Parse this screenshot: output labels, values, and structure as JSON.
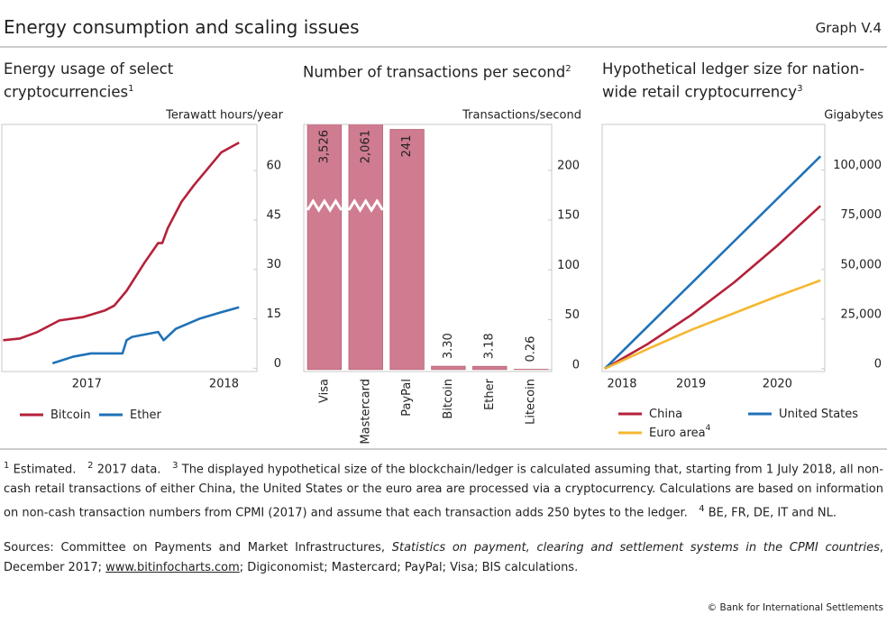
{
  "header": {
    "title": "Energy consumption and scaling issues",
    "graph_id": "Graph V.4"
  },
  "chart_data": [
    {
      "type": "line",
      "title": "Energy usage of select cryptocurrencies",
      "title_note": "1",
      "y_label": "Terawatt hours/year",
      "xlim": [
        2016.38,
        2018.24
      ],
      "xticks": [
        2017,
        2018
      ],
      "ylim": [
        -1,
        74
      ],
      "yticks": [
        0,
        15,
        30,
        45,
        60
      ],
      "grid": false,
      "series": [
        {
          "name": "Bitcoin",
          "color": "#b5213a",
          "x": [
            2016.39,
            2016.51,
            2016.64,
            2016.8,
            2016.97,
            2017.13,
            2017.2,
            2017.29,
            2017.42,
            2017.52,
            2017.55,
            2017.59,
            2017.69,
            2017.78,
            2017.88,
            2017.98,
            2018.11
          ],
          "values": [
            8.5,
            9,
            11,
            14.5,
            15.5,
            17.5,
            19,
            23.5,
            32,
            38,
            38,
            42.5,
            50.5,
            55.5,
            60.5,
            65.5,
            68.5
          ]
        },
        {
          "name": "Ether",
          "color": "#1f72b8",
          "x": [
            2016.75,
            2016.9,
            2017.03,
            2017.26,
            2017.29,
            2017.33,
            2017.52,
            2017.56,
            2017.65,
            2017.82,
            2017.98,
            2018.11
          ],
          "values": [
            1.5,
            3.5,
            4.5,
            4.5,
            8.5,
            9.5,
            11,
            8.5,
            12,
            15,
            17,
            18.5
          ]
        }
      ]
    },
    {
      "type": "bar",
      "title": "Number of transactions per second",
      "title_note": "2",
      "y_label": "Transactions/second",
      "categories": [
        "Visa",
        "Mastercard",
        "PayPal",
        "Bitcoin",
        "Ether",
        "Litecoin"
      ],
      "values": [
        3526,
        2061,
        241,
        3.3,
        3.18,
        0.26
      ],
      "value_labels": [
        "3,526",
        "2,061",
        "241",
        "3.30",
        "3.18",
        "0.26"
      ],
      "color": "#cf7b90",
      "ylim": [
        -2,
        246
      ],
      "yticks": [
        0,
        50,
        100,
        150,
        200
      ],
      "grid": false
    },
    {
      "type": "line",
      "title": "Hypothetical ledger size for nation-wide retail cryptocurrency",
      "title_note": "3",
      "y_label": "Gigabytes",
      "xlim": [
        2018.47,
        2021.05
      ],
      "xticks": [
        {
          "value": 2018.7,
          "label": "2018"
        },
        {
          "value": 2019.5,
          "label": "2019"
        },
        {
          "value": 2020.5,
          "label": "2020"
        }
      ],
      "ylim": [
        -1400,
        123000
      ],
      "yticks": [
        0,
        {
          "value": 25000,
          "label": "25,000"
        },
        {
          "value": 50000,
          "label": "50,000"
        },
        {
          "value": 75000,
          "label": "75,000"
        },
        {
          "value": 100000,
          "label": "100,000"
        }
      ],
      "grid": false,
      "series": [
        {
          "name": "China",
          "color": "#b5213a",
          "x": [
            2018.5,
            2019,
            2019.5,
            2020,
            2020.5,
            2021
          ],
          "values": [
            0,
            12500,
            27000,
            43500,
            62000,
            82000
          ]
        },
        {
          "name": "United States",
          "color": "#1f72b8",
          "x": [
            2018.5,
            2019,
            2019.5,
            2020,
            2020.5,
            2021
          ],
          "values": [
            0,
            21400,
            42800,
            64200,
            85600,
            107000
          ]
        },
        {
          "name": "Euro area",
          "name_note": "4",
          "color": "#f5b731",
          "x": [
            2018.5,
            2019,
            2019.5,
            2020,
            2020.5,
            2021
          ],
          "values": [
            0,
            10000,
            19500,
            28000,
            36500,
            44500
          ]
        }
      ]
    }
  ],
  "footnotes": [
    {
      "marker": "1",
      "text": "Estimated."
    },
    {
      "marker": "2",
      "text": "2017 data."
    },
    {
      "marker": "3",
      "text": "The displayed hypothetical size of the blockchain/ledger is calculated assuming that, starting from 1 July 2018, all non-cash retail transactions of either China, the United States or the euro area are processed via a cryptocurrency. Calculations are based on information on non-cash transaction numbers from CPMI (2017) and assume that each transaction adds 250 bytes to the ledger."
    },
    {
      "marker": "4",
      "text": "BE, FR, DE, IT and NL."
    }
  ],
  "sources": [
    {
      "text": "Sources: Committee on Payments and Market Infrastructures, "
    },
    {
      "text": "Statistics on payment, clearing and settlement systems in the CPMI countries",
      "style": "italic"
    },
    {
      "text": ", December 2017; "
    },
    {
      "text": "www.bitinfocharts.com",
      "style": "link"
    },
    {
      "text": "; Digiconomist; Mastercard; PayPal; Visa; BIS calculations."
    }
  ],
  "copyright": "© Bank for International Settlements"
}
